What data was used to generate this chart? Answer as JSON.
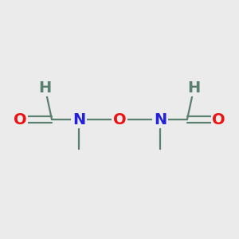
{
  "bg_color": "#ebebeb",
  "bond_color": "#5a8070",
  "atom_colors": {
    "O": "#ee1111",
    "N": "#2222dd",
    "H": "#5a8070",
    "C": "#5a8070"
  },
  "figsize": [
    3.0,
    3.0
  ],
  "dpi": 100,
  "font_size": 14,
  "font_size_small": 11
}
